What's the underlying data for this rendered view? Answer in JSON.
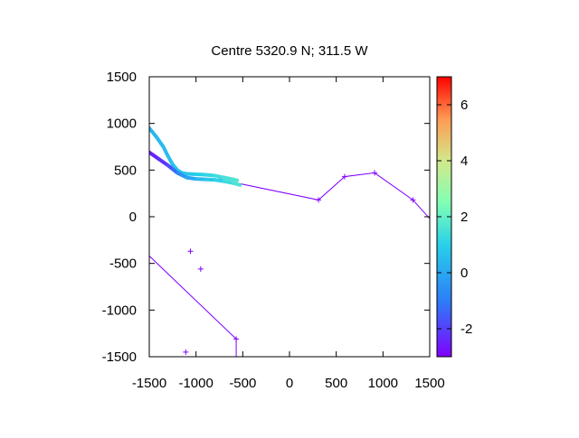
{
  "chart_data": {
    "type": "scatter",
    "title": "Centre 5320.9 N; 311.5  W",
    "xlabel": "",
    "ylabel": "",
    "xlim": [
      -1500,
      1500
    ],
    "ylim": [
      -1500,
      1500
    ],
    "xticks": [
      "-1500",
      "-1000",
      "-500",
      "0",
      "500",
      "1000",
      "1500"
    ],
    "xtick_values": [
      -1500,
      -1000,
      -500,
      0,
      500,
      1000,
      1500
    ],
    "yticks": [
      "1500",
      "1000",
      "500",
      "0",
      "-500",
      "-1000",
      "-1500"
    ],
    "ytick_values": [
      1500,
      1000,
      500,
      0,
      -500,
      -1000,
      -1500
    ],
    "grid": false,
    "colorbar": {
      "range": [
        -3,
        7
      ],
      "ticks": [
        "6",
        "4",
        "2",
        "0",
        "-2"
      ],
      "tick_values": [
        6,
        4,
        2,
        0,
        -2
      ],
      "palette": "rainbow"
    },
    "series": [
      {
        "style": "line-with-markers",
        "color": "#8000ff",
        "x": [
          -750,
          310,
          590,
          910,
          1320,
          1500
        ],
        "y": [
          400,
          180,
          430,
          470,
          180,
          -20
        ],
        "markers": [
          true,
          true,
          true,
          true,
          true,
          false
        ]
      },
      {
        "style": "line-with-markers",
        "color": "#8000ff",
        "x": [
          -1500,
          -570,
          -570
        ],
        "y": [
          -420,
          -1310,
          -1500
        ],
        "markers": [
          false,
          true,
          false
        ]
      },
      {
        "style": "markers",
        "color": "#8000ff",
        "x": [
          -1060,
          -950,
          -1110
        ],
        "y": [
          -370,
          -560,
          -1450
        ]
      },
      {
        "style": "colored-track",
        "x": [
          -1500,
          -1420,
          -1350,
          -1300,
          -1250,
          -1200,
          -1150,
          -1100,
          -1000,
          -900,
          -800,
          -700,
          -600,
          -560
        ],
        "y": [
          950,
          850,
          750,
          650,
          560,
          500,
          470,
          460,
          455,
          450,
          440,
          420,
          400,
          390
        ],
        "z": [
          0.3,
          0.4,
          0.5,
          0.5,
          0.6,
          0.6,
          0.7,
          0.7,
          0.9,
          1.1,
          1.3,
          1.5,
          1.6,
          1.7
        ]
      },
      {
        "style": "colored-track",
        "x": [
          -1500,
          -1400,
          -1300,
          -1250,
          -1200,
          -1150,
          -1100,
          -1000,
          -900,
          -800,
          -700,
          -600,
          -530
        ],
        "y": [
          690,
          620,
          550,
          510,
          470,
          445,
          420,
          405,
          400,
          395,
          380,
          360,
          340
        ],
        "z": [
          -2.6,
          -2.4,
          -2.0,
          -1.6,
          -1.0,
          -0.6,
          -0.3,
          0.2,
          0.6,
          0.9,
          1.2,
          1.5,
          1.7
        ]
      }
    ]
  }
}
